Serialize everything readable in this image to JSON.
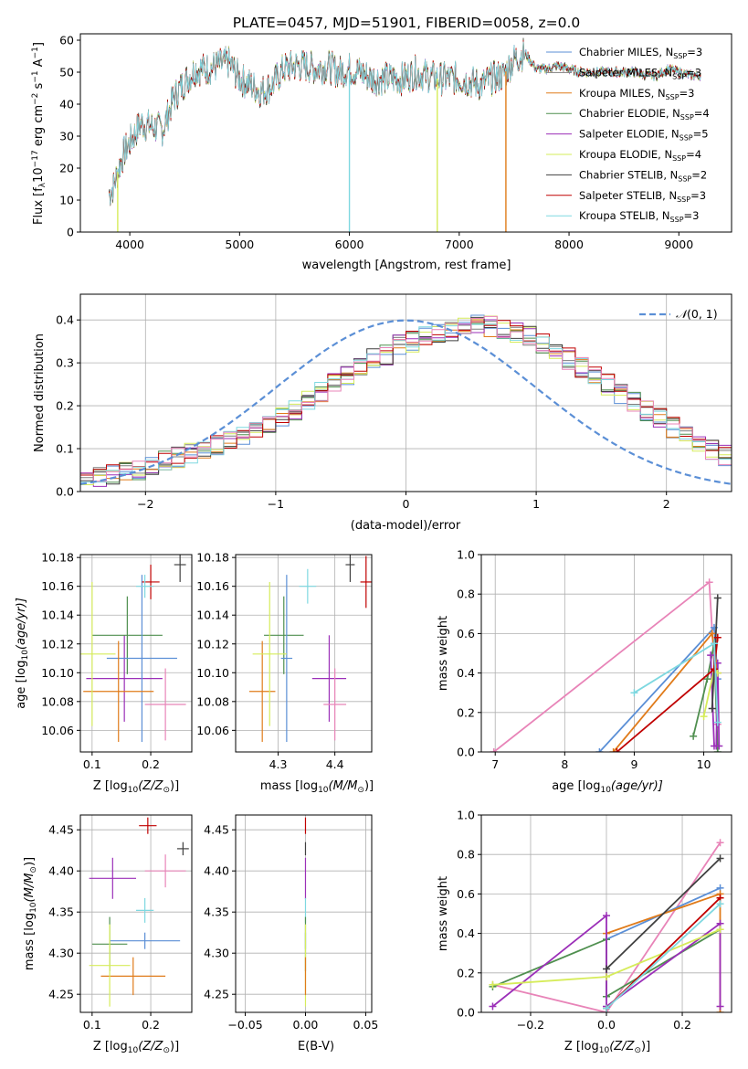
{
  "colors": {
    "chabrier_miles": "#5b8fd6",
    "salpeter_miles": "#7f7f7f",
    "kroupa_miles": "#e07b1a",
    "chabrier_elodie": "#4f8f4f",
    "salpeter_elodie": "#9b2fb8",
    "kroupa_elodie": "#d6ec5a",
    "chabrier_stelib": "#404040",
    "salpeter_stelib": "#c00000",
    "kroupa_stelib": "#7ed8e0",
    "extra_pink": "#e884b8",
    "gaussian": "#5b8fd6"
  },
  "chart_data": [
    {
      "id": "spectrum",
      "type": "line",
      "title": "PLATE=0457, MJD=51901, FIBERID=0058, z=0.0",
      "xlabel": "wavelength [Angstrom, rest frame]",
      "ylabel": "Flux [f$_\\lambda$10$^{-17}$ erg cm$^{-2}$ s$^{-1}$ A$^{-1}$]",
      "ylabel_parts": {
        "a": "Flux [f",
        "b": "λ",
        "c": "10",
        "d": "−17",
        "e": " erg cm",
        "f": "−2",
        "g": " s",
        "h": "−1",
        "i": " A",
        "j": "−1",
        "k": "]"
      },
      "xlim": [
        3550,
        9480
      ],
      "ylim": [
        0,
        62
      ],
      "xticks": [
        4000,
        5000,
        6000,
        7000,
        8000,
        9000
      ],
      "yticks": [
        0,
        10,
        20,
        30,
        40,
        50,
        60
      ],
      "legend_position": "right",
      "continuum": {
        "x": [
          3810,
          3850,
          3900,
          3950,
          4000,
          4100,
          4200,
          4300,
          4400,
          4500,
          4600,
          4700,
          4800,
          4900,
          5000,
          5100,
          5200,
          5300,
          5400,
          5500,
          5600,
          5700,
          5800,
          5900,
          6000,
          6100,
          6200,
          6300,
          6400,
          6500,
          6600,
          6700,
          6800,
          6900,
          7000,
          7100,
          7200,
          7300,
          7400,
          7500,
          7600,
          7700,
          7800,
          7900,
          8000,
          8100,
          8200,
          8300,
          8400,
          8500,
          8600,
          8700,
          8800,
          8900,
          9000,
          9100,
          9200
        ],
        "y": [
          12,
          14,
          20,
          25,
          28,
          34,
          33,
          32,
          42,
          47,
          51,
          51,
          52,
          53,
          48,
          46,
          44,
          46,
          51,
          52,
          52,
          51,
          52,
          50,
          51,
          50,
          48,
          48,
          48,
          48,
          50,
          49,
          48,
          48,
          48,
          47,
          46,
          48,
          49,
          54,
          56,
          51,
          51,
          52,
          51,
          50,
          50,
          50,
          50,
          50,
          50,
          49,
          49,
          51,
          50,
          49,
          49
        ]
      },
      "series": [
        {
          "name_main": "Chabrier MILES, N",
          "name_sub": "SSP",
          "name_tail": "=3",
          "color_key": "chabrier_miles"
        },
        {
          "name_main": "Salpeter MILES, N",
          "name_sub": "SSP",
          "name_tail": "=3",
          "color_key": "salpeter_miles"
        },
        {
          "name_main": "Kroupa MILES, N",
          "name_sub": "SSP",
          "name_tail": "=3",
          "color_key": "kroupa_miles"
        },
        {
          "name_main": "Chabrier ELODIE, N",
          "name_sub": "SSP",
          "name_tail": "=4",
          "color_key": "chabrier_elodie"
        },
        {
          "name_main": "Salpeter ELODIE, N",
          "name_sub": "SSP",
          "name_tail": "=5",
          "color_key": "salpeter_elodie"
        },
        {
          "name_main": "Kroupa ELODIE, N",
          "name_sub": "SSP",
          "name_tail": "=4",
          "color_key": "kroupa_elodie"
        },
        {
          "name_main": "Chabrier STELIB, N",
          "name_sub": "SSP",
          "name_tail": "=2",
          "color_key": "chabrier_stelib"
        },
        {
          "name_main": "Salpeter STELIB, N",
          "name_sub": "SSP",
          "name_tail": "=3",
          "color_key": "salpeter_stelib"
        },
        {
          "name_main": "Kroupa STELIB, N",
          "name_sub": "SSP",
          "name_tail": "=3",
          "color_key": "kroupa_stelib"
        }
      ],
      "drops": [
        {
          "x": 3890,
          "color_key": "kroupa_elodie"
        },
        {
          "x": 6000,
          "color_key": "kroupa_stelib"
        },
        {
          "x": 6800,
          "color_key": "kroupa_elodie"
        },
        {
          "x": 7425,
          "color_key": "kroupa_miles"
        }
      ]
    },
    {
      "id": "residuals",
      "type": "area",
      "xlabel": "(data-model)/error",
      "ylabel": "Normed distribution",
      "xlim": [
        -2.5,
        2.5
      ],
      "ylim": [
        0,
        0.46
      ],
      "xticks": [
        -2,
        -1,
        0,
        1,
        2
      ],
      "yticks": [
        0.0,
        0.1,
        0.2,
        0.3,
        0.4
      ],
      "grid": true,
      "legend_position": "top-right",
      "legend": {
        "prefix": "𝒩",
        "args": "(0, 1)"
      },
      "bin_width": 0.1,
      "bin_start": -2.5,
      "base_histogram": [
        0.03,
        0.035,
        0.04,
        0.045,
        0.05,
        0.06,
        0.07,
        0.08,
        0.09,
        0.1,
        0.11,
        0.12,
        0.13,
        0.145,
        0.16,
        0.175,
        0.19,
        0.21,
        0.23,
        0.25,
        0.27,
        0.29,
        0.31,
        0.32,
        0.34,
        0.35,
        0.36,
        0.37,
        0.375,
        0.38,
        0.39,
        0.385,
        0.38,
        0.37,
        0.36,
        0.345,
        0.33,
        0.31,
        0.29,
        0.27,
        0.25,
        0.23,
        0.21,
        0.19,
        0.17,
        0.15,
        0.13,
        0.115,
        0.1,
        0.085,
        0.07,
        0.06,
        0.05,
        0.045,
        0.04,
        0.035,
        0.03,
        0.028,
        0.025,
        0.022
      ],
      "series_color_keys": [
        "chabrier_miles",
        "salpeter_miles",
        "kroupa_miles",
        "chabrier_elodie",
        "salpeter_elodie",
        "kroupa_elodie",
        "chabrier_stelib",
        "salpeter_stelib",
        "kroupa_stelib",
        "extra_pink"
      ]
    },
    {
      "id": "age_vs_z",
      "type": "scatter",
      "xlabel": "Z [log$_{10}$(Z/Z$_\\odot$)]",
      "ylabel": "age  [log$_{10}$(age/yr)]",
      "xlim": [
        0.08,
        0.27
      ],
      "ylim": [
        10.045,
        10.182
      ],
      "xticks": [
        0.1,
        0.2
      ],
      "yticks": [
        10.06,
        10.08,
        10.1,
        10.12,
        10.14,
        10.16,
        10.18
      ],
      "grid": true,
      "points": [
        {
          "x": 0.155,
          "y": 10.096,
          "xerr": 0.065,
          "yerr": 0.03,
          "color_key": "salpeter_elodie"
        },
        {
          "x": 0.16,
          "y": 10.126,
          "xerr": 0.06,
          "yerr": 0.027,
          "color_key": "chabrier_elodie"
        },
        {
          "x": 0.185,
          "y": 10.11,
          "xerr": 0.06,
          "yerr": 0.058,
          "color_key": "chabrier_miles"
        },
        {
          "x": 0.145,
          "y": 10.087,
          "xerr": 0.06,
          "yerr": 0.035,
          "color_key": "kroupa_miles"
        },
        {
          "x": 0.1,
          "y": 10.113,
          "xerr": 0.04,
          "yerr": 0.05,
          "color_key": "kroupa_elodie"
        },
        {
          "x": 0.225,
          "y": 10.078,
          "xerr": 0.035,
          "yerr": 0.025,
          "color_key": "extra_pink"
        },
        {
          "x": 0.2,
          "y": 10.163,
          "xerr": 0.015,
          "yerr": 0.012,
          "color_key": "salpeter_stelib"
        },
        {
          "x": 0.25,
          "y": 10.175,
          "xerr": 0.01,
          "yerr": 0.012,
          "color_key": "chabrier_stelib"
        },
        {
          "x": 0.19,
          "y": 10.16,
          "xerr": 0.015,
          "yerr": 0.008,
          "color_key": "kroupa_stelib"
        }
      ]
    },
    {
      "id": "age_vs_mass",
      "type": "scatter",
      "xlabel": "mass [log$_{10}$(M/M$_\\odot$)]",
      "xlim": [
        4.225,
        4.465
      ],
      "ylim": [
        10.045,
        10.182
      ],
      "xticks": [
        4.3,
        4.4
      ],
      "yticks": [
        10.06,
        10.08,
        10.1,
        10.12,
        10.14,
        10.16,
        10.18
      ],
      "grid": true,
      "points": [
        {
          "x": 4.39,
          "y": 10.096,
          "xerr": 0.03,
          "yerr": 0.03,
          "color_key": "salpeter_elodie"
        },
        {
          "x": 4.31,
          "y": 10.126,
          "xerr": 0.035,
          "yerr": 0.027,
          "color_key": "chabrier_elodie"
        },
        {
          "x": 4.315,
          "y": 10.11,
          "xerr": 0.01,
          "yerr": 0.058,
          "color_key": "chabrier_miles"
        },
        {
          "x": 4.272,
          "y": 10.087,
          "xerr": 0.023,
          "yerr": 0.035,
          "color_key": "kroupa_miles"
        },
        {
          "x": 4.285,
          "y": 10.113,
          "xerr": 0.03,
          "yerr": 0.05,
          "color_key": "kroupa_elodie"
        },
        {
          "x": 4.4,
          "y": 10.078,
          "xerr": 0.02,
          "yerr": 0.025,
          "color_key": "extra_pink"
        },
        {
          "x": 4.455,
          "y": 10.163,
          "xerr": 0.01,
          "yerr": 0.018,
          "color_key": "salpeter_stelib"
        },
        {
          "x": 4.427,
          "y": 10.175,
          "xerr": 0.008,
          "yerr": 0.012,
          "color_key": "chabrier_stelib"
        },
        {
          "x": 4.352,
          "y": 10.16,
          "xerr": 0.015,
          "yerr": 0.012,
          "color_key": "kroupa_stelib"
        }
      ]
    },
    {
      "id": "weight_vs_age",
      "type": "line",
      "xlabel": "age  [log$_{10}$(age/yr)]",
      "ylabel": "mass weight",
      "xlim": [
        6.8,
        10.4
      ],
      "ylim": [
        0,
        1.0
      ],
      "xticks": [
        7,
        8,
        9,
        10
      ],
      "yticks": [
        0.0,
        0.2,
        0.4,
        0.6,
        0.8,
        1.0
      ],
      "grid": true,
      "series": [
        {
          "color_key": "extra_pink",
          "x": [
            6.98,
            10.08,
            10.2
          ],
          "y": [
            0.0,
            0.86,
            0.14
          ]
        },
        {
          "color_key": "chabrier_miles",
          "x": [
            8.5,
            10.15,
            10.2
          ],
          "y": [
            0.0,
            0.63,
            0.37
          ]
        },
        {
          "color_key": "kroupa_miles",
          "x": [
            8.7,
            10.12,
            10.2
          ],
          "y": [
            0.0,
            0.6,
            0.4
          ]
        },
        {
          "color_key": "chabrier_elodie",
          "x": [
            9.85,
            10.05,
            10.15,
            10.2
          ],
          "y": [
            0.08,
            0.37,
            0.55,
            0.0
          ]
        },
        {
          "color_key": "salpeter_elodie",
          "x": [
            10.1,
            10.15,
            10.18,
            10.2,
            10.22
          ],
          "y": [
            0.49,
            0.03,
            0.03,
            0.45,
            0.03
          ]
        },
        {
          "color_key": "kroupa_elodie",
          "x": [
            10.0,
            10.15,
            10.2
          ],
          "y": [
            0.18,
            0.42,
            0.4
          ]
        },
        {
          "color_key": "chabrier_stelib",
          "x": [
            10.12,
            10.2
          ],
          "y": [
            0.22,
            0.78
          ]
        },
        {
          "color_key": "salpeter_stelib",
          "x": [
            8.75,
            10.15,
            10.2
          ],
          "y": [
            0.0,
            0.42,
            0.58
          ]
        },
        {
          "color_key": "kroupa_stelib",
          "x": [
            9.0,
            10.15,
            10.2
          ],
          "y": [
            0.3,
            0.55,
            0.15
          ]
        }
      ]
    },
    {
      "id": "mass_vs_z",
      "type": "scatter",
      "xlabel": "Z [log$_{10}$(Z/Z$_\\odot$)]",
      "ylabel": "mass [log$_{10}$(M/M$_\\odot$)]",
      "xlim": [
        0.08,
        0.27
      ],
      "ylim": [
        4.228,
        4.468
      ],
      "xticks": [
        0.1,
        0.2
      ],
      "yticks": [
        4.25,
        4.3,
        4.35,
        4.4,
        4.45
      ],
      "grid": true,
      "points": [
        {
          "x": 0.135,
          "y": 4.391,
          "xerr": 0.04,
          "yerr": 0.025,
          "color_key": "salpeter_elodie"
        },
        {
          "x": 0.13,
          "y": 4.311,
          "xerr": 0.03,
          "yerr": 0.033,
          "color_key": "chabrier_elodie"
        },
        {
          "x": 0.19,
          "y": 4.315,
          "xerr": 0.06,
          "yerr": 0.01,
          "color_key": "chabrier_miles"
        },
        {
          "x": 0.17,
          "y": 4.272,
          "xerr": 0.055,
          "yerr": 0.023,
          "color_key": "kroupa_miles"
        },
        {
          "x": 0.13,
          "y": 4.285,
          "xerr": 0.035,
          "yerr": 0.05,
          "color_key": "kroupa_elodie"
        },
        {
          "x": 0.225,
          "y": 4.4,
          "xerr": 0.035,
          "yerr": 0.02,
          "color_key": "extra_pink"
        },
        {
          "x": 0.195,
          "y": 4.455,
          "xerr": 0.015,
          "yerr": 0.01,
          "color_key": "salpeter_stelib"
        },
        {
          "x": 0.255,
          "y": 4.427,
          "xerr": 0.01,
          "yerr": 0.008,
          "color_key": "chabrier_stelib"
        },
        {
          "x": 0.19,
          "y": 4.352,
          "xerr": 0.015,
          "yerr": 0.015,
          "color_key": "kroupa_stelib"
        }
      ]
    },
    {
      "id": "mass_vs_ebv",
      "type": "scatter",
      "xlabel": "E(B-V)",
      "xlim": [
        -0.058,
        0.055
      ],
      "ylim": [
        4.228,
        4.468
      ],
      "xticks": [
        -0.05,
        0.0,
        0.05
      ],
      "xtick_labels": [
        "−0.05",
        "0.00",
        "0.05"
      ],
      "yticks": [
        4.25,
        4.3,
        4.35,
        4.4,
        4.45
      ],
      "grid": true,
      "points": [
        {
          "x": 0.0,
          "y": 4.455,
          "yerr": 0.01,
          "color_key": "salpeter_stelib"
        },
        {
          "x": 0.0,
          "y": 4.427,
          "yerr": 0.008,
          "color_key": "chabrier_stelib"
        },
        {
          "x": 0.0,
          "y": 4.391,
          "yerr": 0.025,
          "color_key": "salpeter_elodie"
        },
        {
          "x": 0.0,
          "y": 4.352,
          "yerr": 0.015,
          "color_key": "kroupa_stelib"
        },
        {
          "x": 0.0,
          "y": 4.315,
          "yerr": 0.01,
          "color_key": "chabrier_miles"
        },
        {
          "x": 0.0,
          "y": 4.311,
          "yerr": 0.033,
          "color_key": "chabrier_elodie"
        },
        {
          "x": 0.0,
          "y": 4.285,
          "yerr": 0.05,
          "color_key": "kroupa_elodie"
        },
        {
          "x": 0.0,
          "y": 4.272,
          "yerr": 0.023,
          "color_key": "kroupa_miles"
        }
      ]
    },
    {
      "id": "weight_vs_z",
      "type": "line",
      "xlabel": "Z [log$_{10}$(Z/Z$_\\odot$)]",
      "ylabel": "mass weight",
      "xlim": [
        -0.33,
        0.33
      ],
      "ylim": [
        0,
        1.0
      ],
      "xticks": [
        -0.2,
        0.0,
        0.2
      ],
      "xtick_labels": [
        "−0.2",
        "0.0",
        "0.2"
      ],
      "yticks": [
        0.0,
        0.2,
        0.4,
        0.6,
        0.8,
        1.0
      ],
      "grid": true,
      "series": [
        {
          "color_key": "extra_pink",
          "x": [
            -0.3,
            0.0,
            0.3
          ],
          "y": [
            0.14,
            0.0,
            0.86
          ]
        },
        {
          "color_key": "chabrier_miles",
          "x": [
            0.0,
            0.3
          ],
          "y": [
            0.37,
            0.63
          ]
        },
        {
          "color_key": "kroupa_miles",
          "x": [
            0.0,
            0.3,
            0.3
          ],
          "y": [
            0.4,
            0.6,
            0.0
          ]
        },
        {
          "color_key": "chabrier_elodie",
          "x": [
            -0.3,
            0.0,
            0.0,
            0.3
          ],
          "y": [
            0.13,
            0.37,
            0.08,
            0.42
          ]
        },
        {
          "color_key": "salpeter_elodie",
          "x": [
            -0.3,
            0.0,
            0.0,
            0.3,
            0.3
          ],
          "y": [
            0.03,
            0.49,
            0.03,
            0.45,
            0.03
          ]
        },
        {
          "color_key": "kroupa_elodie",
          "x": [
            -0.3,
            0.0,
            0.3
          ],
          "y": [
            0.14,
            0.18,
            0.42
          ]
        },
        {
          "color_key": "chabrier_stelib",
          "x": [
            0.0,
            0.3
          ],
          "y": [
            0.22,
            0.78
          ]
        },
        {
          "color_key": "salpeter_stelib",
          "x": [
            0.0,
            0.3
          ],
          "y": [
            0.02,
            0.58
          ]
        },
        {
          "color_key": "kroupa_stelib",
          "x": [
            0.0,
            0.3
          ],
          "y": [
            0.02,
            0.55
          ]
        }
      ]
    }
  ],
  "labels": {
    "title": "PLATE=0457, MJD=51901, FIBERID=0058, z=0.0",
    "spec_xlabel": "wavelength [Angstrom, rest frame]",
    "hist_xlabel": "(data-model)/error",
    "hist_ylabel": "Normed distribution",
    "z_prefix": "Z [log",
    "z_sub": "10",
    "z_paren": "(Z/Z",
    "z_odot": "⊙",
    "z_close": ")]",
    "age_prefix": "age  [log",
    "age_sub": "10",
    "age_mid": "(age/yr)]",
    "mass_prefix": "mass [log",
    "mass_sub": "10",
    "mass_paren": "(M/M",
    "mass_odot": "⊙",
    "mass_close": ")]",
    "ebv": "E(B-V)",
    "mass_weight": "mass weight"
  }
}
